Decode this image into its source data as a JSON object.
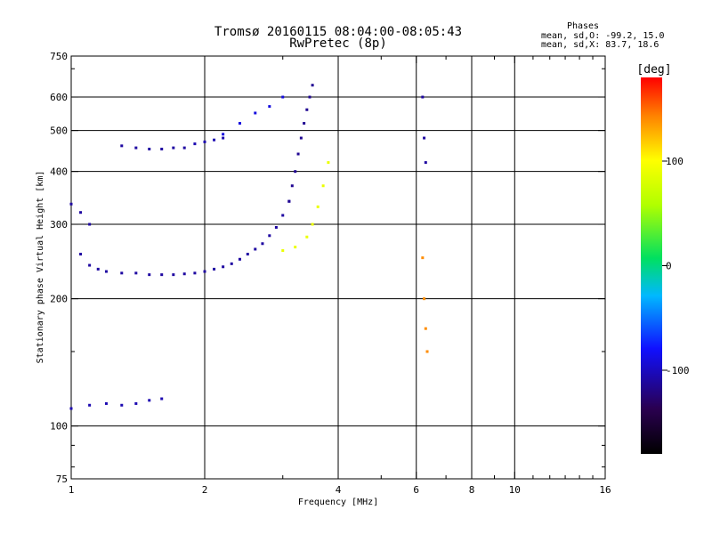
{
  "chart_data": {
    "type": "scatter",
    "title": "Tromsø 20160115 08:04:00-08:05:43",
    "subtitle": "RwPretec (8p)",
    "xlabel": "Frequency [MHz]",
    "ylabel": "Stationary phase Virtual Height [km]",
    "xscale": "log",
    "yscale": "log",
    "xlim": [
      1,
      16
    ],
    "ylim": [
      75,
      750
    ],
    "x_ticks": [
      1,
      2,
      4,
      6,
      8,
      10,
      16
    ],
    "x_tick_labels": [
      "1",
      "2",
      "4",
      "6",
      "8",
      "10",
      "16"
    ],
    "x_minor_ticks": [
      3,
      5,
      7,
      9,
      11,
      12,
      13,
      14,
      15
    ],
    "y_ticks": [
      75,
      100,
      200,
      300,
      400,
      500,
      600,
      750
    ],
    "y_tick_labels": [
      "75",
      "100",
      "200",
      "300",
      "400",
      "500",
      "600",
      "750"
    ],
    "y_minor_ticks": [
      80,
      90,
      150,
      700
    ],
    "grid_x": [
      2,
      4,
      6,
      8,
      10
    ],
    "grid_y": [
      100,
      200,
      300,
      400,
      500,
      600
    ],
    "phase_info": {
      "heading": "Phases",
      "line_o": "mean, sd,O: -99.2, 15.0",
      "line_x": "mean, sd,X:  83.7, 18.6"
    },
    "colorbar": {
      "label": "[deg]",
      "min": -180,
      "max": 180,
      "ticks": [
        100,
        0,
        -100
      ],
      "tick_labels": [
        "100",
        "0",
        "-100"
      ]
    },
    "series": [
      {
        "description_values_only": true,
        "traces": [
          {
            "f": [
              1.0,
              1.05,
              1.1
            ],
            "h": [
              335,
              320,
              300
            ],
            "phase": -110
          },
          {
            "f": [
              1.05,
              1.1,
              1.15,
              1.2,
              1.3,
              1.4,
              1.5,
              1.6,
              1.7,
              1.8,
              1.9,
              2.0,
              2.1,
              2.2,
              2.3,
              2.4,
              2.5,
              2.6,
              2.7,
              2.8,
              2.9,
              3.0,
              3.1
            ],
            "h": [
              255,
              240,
              235,
              232,
              230,
              230,
              228,
              228,
              228,
              229,
              230,
              232,
              235,
              238,
              242,
              248,
              255,
              262,
              270,
              282,
              295,
              315,
              340
            ],
            "phase": -110
          },
          {
            "f": [
              3.1,
              3.15,
              3.2,
              3.25,
              3.3,
              3.35,
              3.4,
              3.45,
              3.5
            ],
            "h": [
              340,
              370,
              400,
              440,
              480,
              520,
              560,
              600,
              640
            ],
            "phase": -115
          },
          {
            "f": [
              1.3,
              1.4,
              1.5,
              1.6,
              1.7,
              1.8
            ],
            "h": [
              460,
              455,
              452,
              452,
              455,
              455
            ],
            "phase": -110
          },
          {
            "f": [
              1.9,
              2.0,
              2.1,
              2.2
            ],
            "h": [
              465,
              470,
              475,
              480
            ],
            "phase": -105
          },
          {
            "f": [
              2.2,
              2.4,
              2.6,
              2.8,
              3.0
            ],
            "h": [
              490,
              520,
              550,
              570,
              600
            ],
            "phase": -90
          },
          {
            "f": [
              1.0,
              1.1,
              1.2,
              1.3,
              1.4,
              1.5,
              1.6
            ],
            "h": [
              110,
              112,
              113,
              112,
              113,
              115,
              116
            ],
            "phase": -105
          },
          {
            "f": [
              3.0,
              3.2,
              3.4,
              3.5,
              3.6,
              3.7,
              3.8
            ],
            "h": [
              260,
              265,
              280,
              300,
              330,
              370,
              420
            ],
            "phase": 90
          },
          {
            "f": [
              6.2,
              6.25,
              6.3
            ],
            "h": [
              600,
              480,
              420
            ],
            "phase": -110
          },
          {
            "f": [
              6.2,
              6.25,
              6.3,
              6.35
            ],
            "h": [
              250,
              200,
              170,
              150
            ],
            "phase": 140
          }
        ]
      }
    ]
  }
}
